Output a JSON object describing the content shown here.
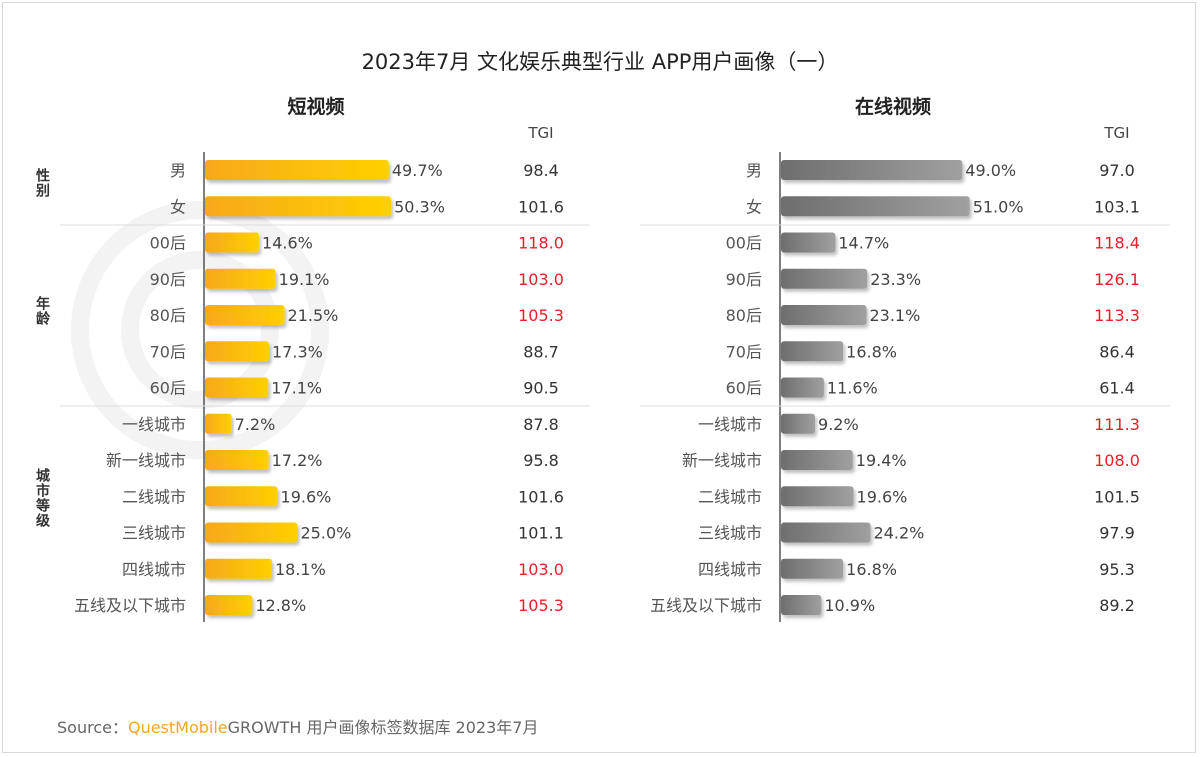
{
  "title": "2023年7月 文化娱乐典型行业 APP用户画像（一）",
  "watermark": "QUESTMOBILE",
  "source": {
    "prefix": "Source：",
    "brand": "QuestMobile",
    "text": "GROWTH 用户画像标签数据库 2023年7月"
  },
  "groups": [
    "性别",
    "年龄",
    "城市等级"
  ],
  "chart_data": [
    {
      "type": "bar",
      "orientation": "horizontal",
      "title": "短视频",
      "tgi_header": "TGI",
      "color": "#f9b800",
      "categories": [
        "男",
        "女",
        "00后",
        "90后",
        "80后",
        "70后",
        "60后",
        "一线城市",
        "新一线城市",
        "二线城市",
        "三线城市",
        "四线城市",
        "五线及以下城市"
      ],
      "group_of_category": [
        "性别",
        "性别",
        "年龄",
        "年龄",
        "年龄",
        "年龄",
        "年龄",
        "城市等级",
        "城市等级",
        "城市等级",
        "城市等级",
        "城市等级",
        "城市等级"
      ],
      "values": [
        49.7,
        50.3,
        14.6,
        19.1,
        21.5,
        17.3,
        17.1,
        7.2,
        17.2,
        19.6,
        25.0,
        18.1,
        12.8
      ],
      "value_labels": [
        "49.7%",
        "50.3%",
        "14.6%",
        "19.1%",
        "21.5%",
        "17.3%",
        "17.1%",
        "7.2%",
        "17.2%",
        "19.6%",
        "25.0%",
        "18.1%",
        "12.8%"
      ],
      "tgi": [
        "98.4",
        "101.6",
        "118.0",
        "103.0",
        "105.3",
        "88.7",
        "90.5",
        "87.8",
        "95.8",
        "101.6",
        "101.1",
        "103.0",
        "105.3"
      ],
      "tgi_highlight": [
        false,
        false,
        true,
        true,
        true,
        false,
        false,
        false,
        false,
        false,
        false,
        true,
        true
      ]
    },
    {
      "type": "bar",
      "orientation": "horizontal",
      "title": "在线视频",
      "tgi_header": "TGI",
      "color": "#7a7a7a",
      "categories": [
        "男",
        "女",
        "00后",
        "90后",
        "80后",
        "70后",
        "60后",
        "一线城市",
        "新一线城市",
        "二线城市",
        "三线城市",
        "四线城市",
        "五线及以下城市"
      ],
      "group_of_category": [
        "性别",
        "性别",
        "年龄",
        "年龄",
        "年龄",
        "年龄",
        "年龄",
        "城市等级",
        "城市等级",
        "城市等级",
        "城市等级",
        "城市等级",
        "城市等级"
      ],
      "values": [
        49.0,
        51.0,
        14.7,
        23.3,
        23.1,
        16.8,
        11.6,
        9.2,
        19.4,
        19.6,
        24.2,
        16.8,
        10.9
      ],
      "value_labels": [
        "49.0%",
        "51.0%",
        "14.7%",
        "23.3%",
        "23.1%",
        "16.8%",
        "11.6%",
        "9.2%",
        "19.4%",
        "19.6%",
        "24.2%",
        "16.8%",
        "10.9%"
      ],
      "tgi": [
        "97.0",
        "103.1",
        "118.4",
        "126.1",
        "113.3",
        "86.4",
        "61.4",
        "111.3",
        "108.0",
        "101.5",
        "97.9",
        "95.3",
        "89.2"
      ],
      "tgi_highlight": [
        false,
        false,
        true,
        true,
        true,
        false,
        false,
        true,
        true,
        false,
        false,
        false,
        false
      ]
    }
  ],
  "colors": {
    "highlight": "#e8202a",
    "normal": "#333333",
    "brand": "#f5a623"
  }
}
